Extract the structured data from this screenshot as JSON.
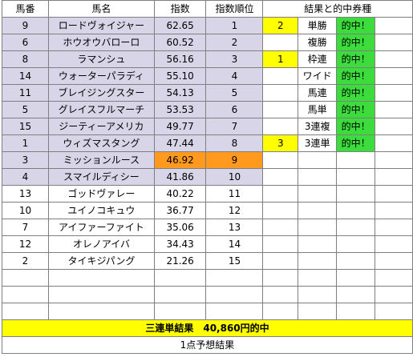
{
  "headers": {
    "umaban": "馬番",
    "bamei": "馬名",
    "shisu": "指数",
    "junni": "指数順位",
    "kekka": "結果と的中券種"
  },
  "rows": [
    {
      "umaban": "9",
      "name": "ロードヴォイジャー",
      "shisu": "62.65",
      "rank": "1",
      "mark": "2",
      "type": "単勝",
      "hit": "的中！"
    },
    {
      "umaban": "6",
      "name": "ホウオウバローロ",
      "shisu": "60.52",
      "rank": "2",
      "mark": "",
      "type": "複勝",
      "hit": "的中！"
    },
    {
      "umaban": "8",
      "name": "ラマンシュ",
      "shisu": "56.16",
      "rank": "3",
      "mark": "1",
      "type": "枠連",
      "hit": "的中！"
    },
    {
      "umaban": "14",
      "name": "ウォーターパラディ",
      "shisu": "55.10",
      "rank": "4",
      "mark": "",
      "type": "ワイド",
      "hit": "的中！"
    },
    {
      "umaban": "11",
      "name": "ブレイジングスター",
      "shisu": "54.13",
      "rank": "5",
      "mark": "",
      "type": "馬連",
      "hit": "的中！"
    },
    {
      "umaban": "5",
      "name": "グレイスフルマーチ",
      "shisu": "53.53",
      "rank": "6",
      "mark": "",
      "type": "馬単",
      "hit": "的中！"
    },
    {
      "umaban": "15",
      "name": "ジーティーアメリカ",
      "shisu": "49.77",
      "rank": "7",
      "mark": "",
      "type": "3連複",
      "hit": "的中！"
    },
    {
      "umaban": "1",
      "name": "ウィズマスタング",
      "shisu": "47.44",
      "rank": "8",
      "mark": "3",
      "type": "3連単",
      "hit": "的中！"
    },
    {
      "umaban": "3",
      "name": "ミッションルース",
      "shisu": "46.92",
      "rank": "9",
      "mark": "",
      "type": "",
      "hit": ""
    },
    {
      "umaban": "4",
      "name": "スマイルディシー",
      "shisu": "41.86",
      "rank": "10",
      "mark": "",
      "type": "",
      "hit": ""
    },
    {
      "umaban": "13",
      "name": "ゴッドヴァレー",
      "shisu": "40.22",
      "rank": "11",
      "mark": "",
      "type": "",
      "hit": ""
    },
    {
      "umaban": "10",
      "name": "ユイノコキュウ",
      "shisu": "36.77",
      "rank": "12",
      "mark": "",
      "type": "",
      "hit": ""
    },
    {
      "umaban": "7",
      "name": "アイファーファイト",
      "shisu": "35.06",
      "rank": "13",
      "mark": "",
      "type": "",
      "hit": ""
    },
    {
      "umaban": "12",
      "name": "オレノアイバ",
      "shisu": "34.43",
      "rank": "14",
      "mark": "",
      "type": "",
      "hit": ""
    },
    {
      "umaban": "2",
      "name": "タイキジパング",
      "shisu": "21.26",
      "rank": "15",
      "mark": "",
      "type": "",
      "hit": ""
    }
  ],
  "summary": "三連単結果　40,860円的中",
  "footer": "1点予想結果",
  "colors": {
    "lavender": "#d9d5e8",
    "orange": "#ff9a1f",
    "yellow": "#ffff00",
    "green": "#3ddc3d"
  }
}
